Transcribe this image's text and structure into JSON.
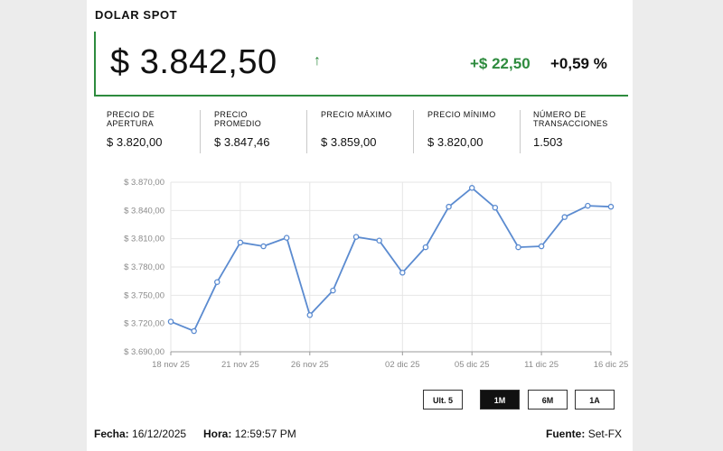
{
  "header": {
    "title": "DOLAR SPOT"
  },
  "quote": {
    "price": "$ 3.842,50",
    "direction_icon": "arrow-up-icon",
    "direction_glyph": "↑",
    "change": "+$ 22,50",
    "change_pct": "+0,59 %"
  },
  "stats": [
    {
      "label_line1": "PRECIO DE",
      "label_line2": "APERTURA",
      "value": "$ 3.820,00"
    },
    {
      "label_line1": "PRECIO",
      "label_line2": "PROMEDIO",
      "value": "$ 3.847,46"
    },
    {
      "label_line1": "PRECIO MÁXIMO",
      "label_line2": "",
      "value": "$ 3.859,00"
    },
    {
      "label_line1": "PRECIO MÍNIMO",
      "label_line2": "",
      "value": "$ 3.820,00"
    },
    {
      "label_line1": "NÚMERO DE",
      "label_line2": "TRANSACCIONES",
      "value": "1.503"
    }
  ],
  "range_buttons": [
    {
      "label": "Ult. 5",
      "active": false
    },
    {
      "label": "1M",
      "active": true
    },
    {
      "label": "6M",
      "active": false
    },
    {
      "label": "1A",
      "active": false
    }
  ],
  "footer": {
    "fecha_label": "Fecha:",
    "fecha_value": "16/12/2025",
    "hora_label": "Hora:",
    "hora_value": "12:59:57 PM",
    "fuente_label": "Fuente:",
    "fuente_value": "Set-FX"
  },
  "colors": {
    "accent_green": "#2e8b3e",
    "line_blue": "#5b8bd0",
    "grid": "#e6e6e6"
  },
  "chart_data": {
    "type": "line",
    "title": "",
    "xlabel": "",
    "ylabel": "",
    "ylim": [
      3690,
      3870
    ],
    "yticks": [
      3690,
      3720,
      3750,
      3780,
      3810,
      3840,
      3870
    ],
    "ytick_labels": [
      "$ 3.690,00",
      "$ 3.720,00",
      "$ 3.750,00",
      "$ 3.780,00",
      "$ 3.810,00",
      "$ 3.840,00",
      "$ 3.870,00"
    ],
    "x": [
      "18 nov 25",
      "19 nov 25",
      "20 nov 25",
      "21 nov 25",
      "24 nov 25",
      "25 nov 25",
      "26 nov 25",
      "27 nov 25",
      "28 nov 25",
      "01 dic 25",
      "02 dic 25",
      "03 dic 25",
      "04 dic 25",
      "05 dic 25",
      "09 dic 25",
      "10 dic 25",
      "11 dic 25",
      "12 dic 25",
      "15 dic 25",
      "16 dic 25"
    ],
    "xtick_labels": [
      "18 nov 25",
      "21 nov 25",
      "26 nov 25",
      "02 dic 25",
      "05 dic 25",
      "11 dic 25",
      "16 dic 25"
    ],
    "xtick_indices": [
      0,
      3,
      6,
      10,
      13,
      16,
      19
    ],
    "series": [
      {
        "values": [
          3722,
          3712,
          3764,
          3806,
          3802,
          3811,
          3729,
          3755,
          3812,
          3808,
          3774,
          3801,
          3844,
          3864,
          3843,
          3801,
          3802,
          3833,
          3845,
          3844
        ]
      }
    ],
    "grid": true,
    "legend": "none"
  }
}
